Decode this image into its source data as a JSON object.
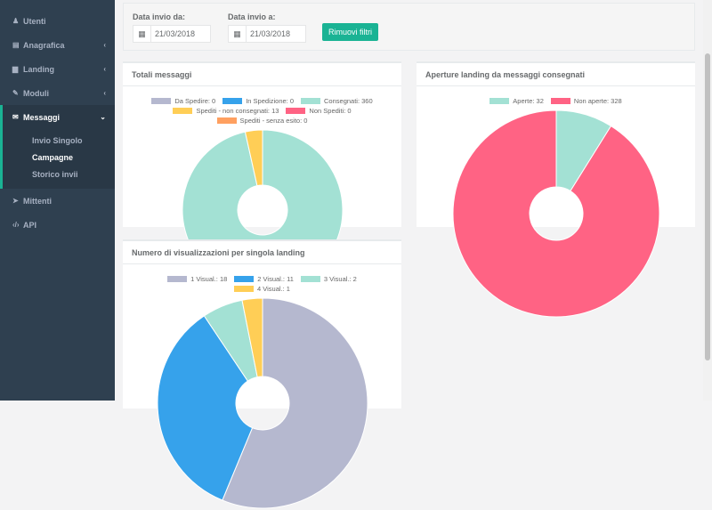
{
  "sidebar": {
    "items": [
      {
        "label": "Utenti",
        "icon": "user-icon",
        "chev": ""
      },
      {
        "label": "Anagrafica",
        "icon": "list-icon",
        "chev": "‹"
      },
      {
        "label": "Landing",
        "icon": "file-icon",
        "chev": "‹"
      },
      {
        "label": "Moduli",
        "icon": "edit-icon",
        "chev": "‹"
      }
    ],
    "active": {
      "label": "Messaggi",
      "icon": "envelope-icon",
      "chev": "⌄",
      "sub": [
        "Invio Singolo",
        "Campagne",
        "Storico invii"
      ]
    },
    "after": [
      {
        "label": "Mittenti",
        "icon": "paper-plane-icon"
      },
      {
        "label": "API",
        "icon": "code-icon"
      }
    ]
  },
  "filters": {
    "from_label": "Data invio da:",
    "from_value": "21/03/2018",
    "to_label": "Data invio a:",
    "to_value": "21/03/2018",
    "remove_label": "Rimuovi filtri"
  },
  "chart_data": [
    {
      "type": "pie",
      "title": "Totali messaggi",
      "labels": [
        "Da Spedire: 0",
        "In Spedizione: 0",
        "Consegnati: 360",
        "Spediti - non consegnati: 13",
        "Non Spediti: 0",
        "Spediti - senza esito: 0"
      ],
      "values": [
        0,
        0,
        360,
        13,
        0,
        0
      ],
      "colors": [
        "#b5b8cf",
        "#36a2eb",
        "#a3e1d4",
        "#ffce56",
        "#ff6384",
        "#ffa060"
      ]
    },
    {
      "type": "pie",
      "title": "Aperture landing da messaggi consegnati",
      "labels": [
        "Aperte: 32",
        "Non aperte: 328"
      ],
      "values": [
        32,
        328
      ],
      "colors": [
        "#a3e1d4",
        "#ff6384"
      ]
    },
    {
      "type": "pie",
      "title": "Numero di visualizzazioni per singola landing",
      "labels": [
        "1 Visual.: 18",
        "2 Visual.: 11",
        "3 Visual.: 2",
        "4 Visual.: 1"
      ],
      "values": [
        18,
        11,
        2,
        1
      ],
      "colors": [
        "#b5b8cf",
        "#36a2eb",
        "#a3e1d4",
        "#ffce56"
      ]
    }
  ]
}
